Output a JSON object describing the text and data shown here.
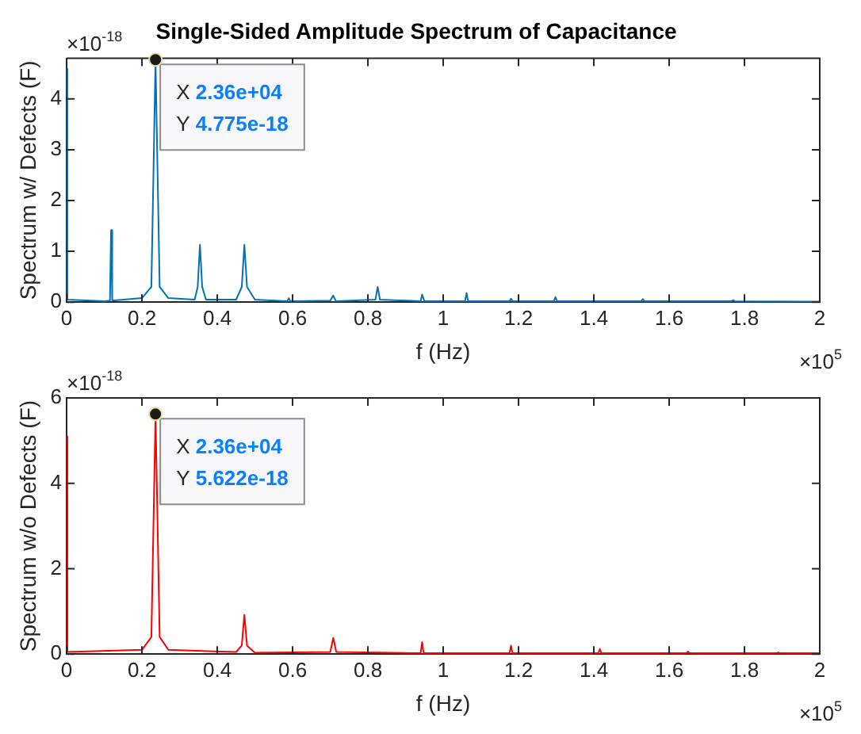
{
  "chart_data": [
    {
      "type": "line",
      "title": "Single-Sided Amplitude Spectrum of Capacitance",
      "xlabel": "f (Hz)",
      "ylabel": "Spectrum w/ Defects (F)",
      "series": [
        {
          "color": "#0072bd",
          "x": [
            0,
            0.002,
            0.1,
            0.115,
            0.118,
            0.121,
            0.2,
            0.225,
            0.236,
            0.247,
            0.27,
            0.34,
            0.348,
            0.354,
            0.36,
            0.37,
            0.45,
            0.465,
            0.472,
            0.479,
            0.5,
            0.586,
            0.59,
            0.594,
            0.7,
            0.708,
            0.715,
            0.82,
            0.826,
            0.832,
            0.94,
            0.944,
            0.95,
            1.058,
            1.062,
            1.066,
            1.176,
            1.18,
            1.184,
            1.294,
            1.298,
            1.302,
            1.526,
            1.53,
            1.534,
            1.766,
            1.77,
            1.774,
            2
          ],
          "values": [
            4.6,
            0.05,
            0.02,
            0.03,
            1.42,
            0.03,
            0.08,
            0.3,
            4.775,
            0.3,
            0.08,
            0.05,
            0.3,
            1.13,
            0.3,
            0.05,
            0.05,
            0.3,
            1.13,
            0.3,
            0.05,
            0.02,
            0.08,
            0.02,
            0.03,
            0.13,
            0.02,
            0.05,
            0.3,
            0.05,
            0.02,
            0.15,
            0.02,
            0.02,
            0.18,
            0.02,
            0.02,
            0.07,
            0.02,
            0.02,
            0.1,
            0.02,
            0.02,
            0.06,
            0.02,
            0.02,
            0.04,
            0.02,
            0.01
          ]
        }
      ],
      "xlim": [
        0,
        2
      ],
      "xticks": [
        0,
        0.2,
        0.4,
        0.6,
        0.8,
        1,
        1.2,
        1.4,
        1.6,
        1.8,
        2
      ],
      "ylim": [
        0,
        4.8
      ],
      "yticks": [
        0,
        1,
        2,
        3,
        4
      ],
      "grid": false,
      "legend": false,
      "marker": "none",
      "line_style": "solid",
      "annotations": [
        "×10$^{-18}$",
        "×10$^{5}$",
        {
          "text": "X 2.36e+04\nY 4.775e-18",
          "x": 0.236,
          "y": 4.775
        }
      ]
    },
    {
      "type": "line",
      "xlabel": "f (Hz)",
      "ylabel": "Spectrum w/o Defects (F)",
      "series": [
        {
          "color": "#ff0000",
          "x": [
            0,
            0.002,
            0.2,
            0.225,
            0.236,
            0.247,
            0.27,
            0.45,
            0.465,
            0.472,
            0.479,
            0.5,
            0.7,
            0.708,
            0.716,
            0.94,
            0.944,
            0.948,
            1.176,
            1.18,
            1.184,
            1.412,
            1.416,
            1.42,
            1.646,
            1.65,
            1.654,
            1.886,
            1.89,
            1.894,
            2
          ],
          "values": [
            5.1,
            0.05,
            0.1,
            0.4,
            5.622,
            0.4,
            0.1,
            0.05,
            0.2,
            0.92,
            0.2,
            0.03,
            0.05,
            0.38,
            0.05,
            0.02,
            0.28,
            0.02,
            0.02,
            0.2,
            0.02,
            0.02,
            0.12,
            0.02,
            0.02,
            0.06,
            0.02,
            0.02,
            0.04,
            0.02,
            0.02
          ]
        }
      ],
      "xlim": [
        0,
        2
      ],
      "xticks": [
        0,
        0.2,
        0.4,
        0.6,
        0.8,
        1,
        1.2,
        1.4,
        1.6,
        1.8,
        2
      ],
      "ylim": [
        0,
        6
      ],
      "yticks": [
        0,
        2,
        4,
        6
      ],
      "grid": false,
      "legend": false,
      "marker": "none",
      "line_style": "solid",
      "annotations": [
        "×10$^{-18}$",
        "×10$^{5}$",
        {
          "text": "X 2.36e+04\nY 5.622e-18",
          "x": 0.236,
          "y": 5.622
        }
      ]
    }
  ]
}
